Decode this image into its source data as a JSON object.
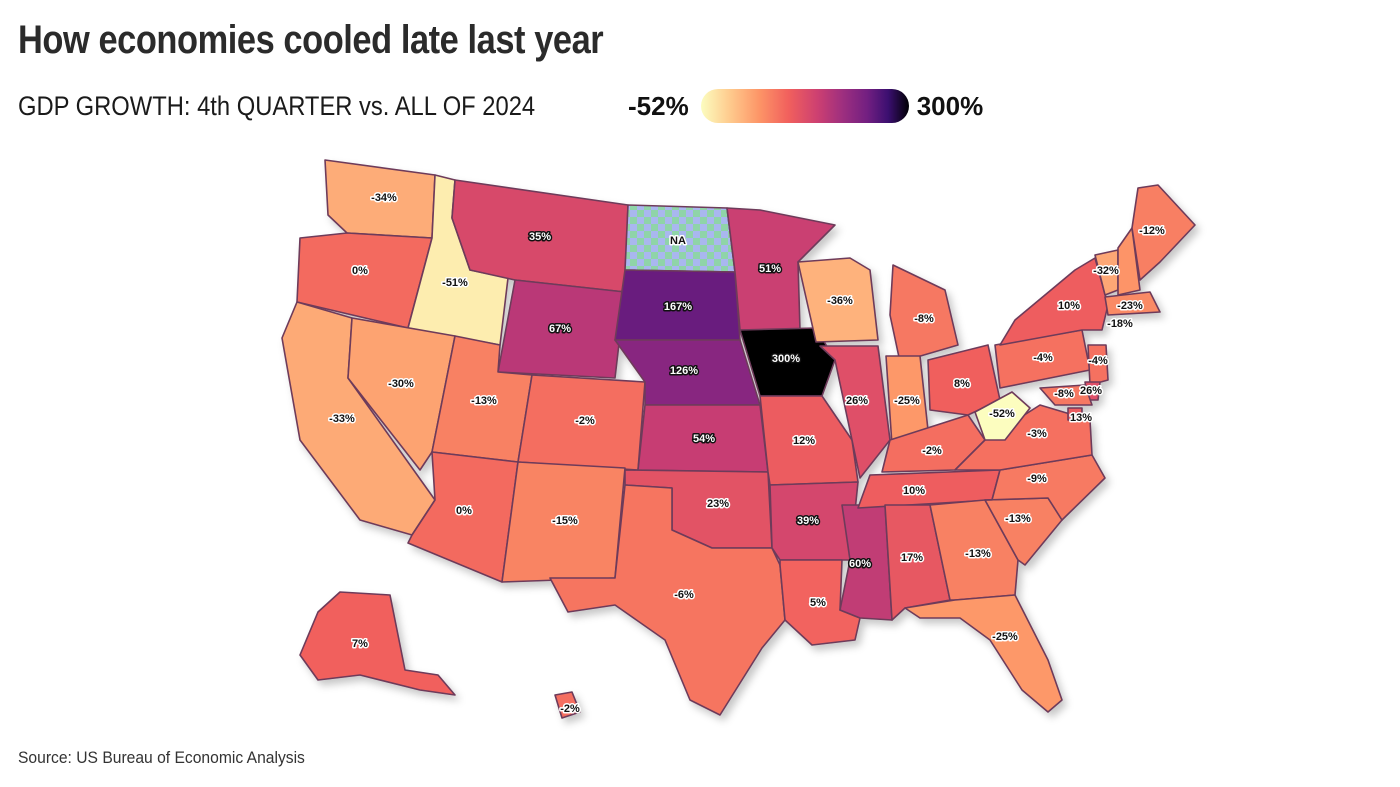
{
  "title": "How economies cooled late last year",
  "subtitle": "GDP GROWTH: 4th QUARTER vs. ALL OF 2024",
  "legend": {
    "min_label": "-52%",
    "max_label": "300%",
    "min_value": -52,
    "max_value": 300,
    "colors": [
      "#fcfdbf",
      "#feca8d",
      "#fd9567",
      "#f1605d",
      "#cd4071",
      "#9e2f7f",
      "#721f81",
      "#3b0f70",
      "#000004"
    ]
  },
  "source": "Source: US Bureau of Economic Analysis",
  "states": [
    {
      "state": "WA",
      "label": "-34%",
      "value": -34
    },
    {
      "state": "OR",
      "label": "0%",
      "value": 0
    },
    {
      "state": "CA",
      "label": "-33%",
      "value": -33
    },
    {
      "state": "ID",
      "label": "-51%",
      "value": -51
    },
    {
      "state": "NV",
      "label": "-30%",
      "value": -30
    },
    {
      "state": "MT",
      "label": "35%",
      "value": 35
    },
    {
      "state": "WY",
      "label": "67%",
      "value": 67
    },
    {
      "state": "UT",
      "label": "-13%",
      "value": -13
    },
    {
      "state": "AZ",
      "label": "0%",
      "value": 0
    },
    {
      "state": "CO",
      "label": "-2%",
      "value": -2
    },
    {
      "state": "NM",
      "label": "-15%",
      "value": -15
    },
    {
      "state": "ND",
      "label": "NA",
      "value": null
    },
    {
      "state": "SD",
      "label": "167%",
      "value": 167
    },
    {
      "state": "NE",
      "label": "126%",
      "value": 126
    },
    {
      "state": "KS",
      "label": "54%",
      "value": 54
    },
    {
      "state": "OK",
      "label": "23%",
      "value": 23
    },
    {
      "state": "TX",
      "label": "-6%",
      "value": -6
    },
    {
      "state": "MN",
      "label": "51%",
      "value": 51
    },
    {
      "state": "IA",
      "label": "300%",
      "value": 300
    },
    {
      "state": "MO",
      "label": "12%",
      "value": 12
    },
    {
      "state": "AR",
      "label": "39%",
      "value": 39
    },
    {
      "state": "LA",
      "label": "5%",
      "value": 5
    },
    {
      "state": "WI",
      "label": "-36%",
      "value": -36
    },
    {
      "state": "IL",
      "label": "26%",
      "value": 26
    },
    {
      "state": "MS",
      "label": "60%",
      "value": 60
    },
    {
      "state": "MI",
      "label": "-8%",
      "value": -8
    },
    {
      "state": "IN",
      "label": "-25%",
      "value": -25
    },
    {
      "state": "KY",
      "label": "-2%",
      "value": -2
    },
    {
      "state": "TN",
      "label": "10%",
      "value": 10
    },
    {
      "state": "AL",
      "label": "17%",
      "value": 17
    },
    {
      "state": "OH",
      "label": "8%",
      "value": 8
    },
    {
      "state": "GA",
      "label": "-13%",
      "value": -13
    },
    {
      "state": "FL",
      "label": "-25%",
      "value": -25
    },
    {
      "state": "SC",
      "label": "-13%",
      "value": -13
    },
    {
      "state": "NC",
      "label": "-9%",
      "value": -9
    },
    {
      "state": "VA",
      "label": "-3%",
      "value": -3
    },
    {
      "state": "WV",
      "label": "-52%",
      "value": -52
    },
    {
      "state": "PA",
      "label": "-4%",
      "value": -4
    },
    {
      "state": "NY",
      "label": "10%",
      "value": 10
    },
    {
      "state": "VT",
      "label": "-32%",
      "value": -32
    },
    {
      "state": "NH",
      "label": "-23%",
      "value": -23
    },
    {
      "state": "ME",
      "label": "-12%",
      "value": -12
    },
    {
      "state": "MA",
      "label": "-18%",
      "value": -18
    },
    {
      "state": "NJ",
      "label": "-4%",
      "value": -4
    },
    {
      "state": "DE",
      "label": "26%",
      "value": 26
    },
    {
      "state": "MD",
      "label": "-8%",
      "value": -8
    },
    {
      "state": "DC",
      "label": "13%",
      "value": 13
    },
    {
      "state": "AK",
      "label": "7%",
      "value": 7
    },
    {
      "state": "HI",
      "label": "-2%",
      "value": -2
    }
  ]
}
